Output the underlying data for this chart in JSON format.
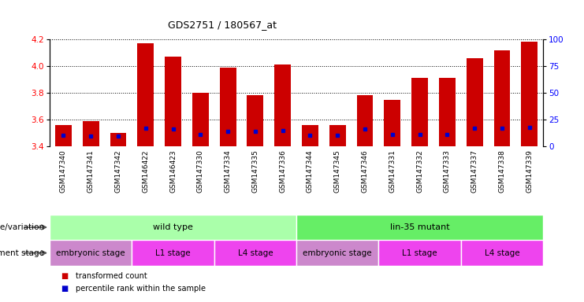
{
  "title": "GDS2751 / 180567_at",
  "samples": [
    "GSM147340",
    "GSM147341",
    "GSM147342",
    "GSM146422",
    "GSM146423",
    "GSM147330",
    "GSM147334",
    "GSM147335",
    "GSM147336",
    "GSM147344",
    "GSM147345",
    "GSM147346",
    "GSM147331",
    "GSM147332",
    "GSM147333",
    "GSM147337",
    "GSM147338",
    "GSM147339"
  ],
  "bar_values": [
    3.56,
    3.59,
    3.5,
    4.17,
    4.07,
    3.8,
    3.99,
    3.78,
    4.01,
    3.56,
    3.56,
    3.78,
    3.75,
    3.91,
    3.91,
    4.06,
    4.12,
    4.18
  ],
  "percentile_values": [
    3.485,
    3.48,
    3.475,
    3.535,
    3.53,
    3.49,
    3.51,
    3.515,
    3.52,
    3.485,
    3.485,
    3.53,
    3.49,
    3.49,
    3.492,
    3.535,
    3.535,
    3.54
  ],
  "bar_color": "#cc0000",
  "percentile_color": "#0000cc",
  "ylim_left": [
    3.4,
    4.2
  ],
  "ylim_right": [
    0,
    100
  ],
  "yticks_left": [
    3.4,
    3.6,
    3.8,
    4.0,
    4.2
  ],
  "yticks_right": [
    0,
    25,
    50,
    75,
    100
  ],
  "genotype_label": "genotype/variation",
  "stage_label": "development stage",
  "geno_data": [
    {
      "label": "wild type",
      "start": 0,
      "end": 9,
      "color": "#aaffaa"
    },
    {
      "label": "lin-35 mutant",
      "start": 9,
      "end": 18,
      "color": "#66ee66"
    }
  ],
  "stage_data": [
    {
      "label": "embryonic stage",
      "start": 0,
      "end": 3,
      "color": "#cc88cc"
    },
    {
      "label": "L1 stage",
      "start": 3,
      "end": 6,
      "color": "#ee44ee"
    },
    {
      "label": "L4 stage",
      "start": 6,
      "end": 9,
      "color": "#ee44ee"
    },
    {
      "label": "embryonic stage",
      "start": 9,
      "end": 12,
      "color": "#cc88cc"
    },
    {
      "label": "L1 stage",
      "start": 12,
      "end": 15,
      "color": "#ee44ee"
    },
    {
      "label": "L4 stage",
      "start": 15,
      "end": 18,
      "color": "#ee44ee"
    }
  ],
  "legend_items": [
    {
      "label": "transformed count",
      "color": "#cc0000"
    },
    {
      "label": "percentile rank within the sample",
      "color": "#0000cc"
    }
  ],
  "bar_width": 0.6,
  "xtick_bg": "#cccccc",
  "fig_bg": "#ffffff"
}
